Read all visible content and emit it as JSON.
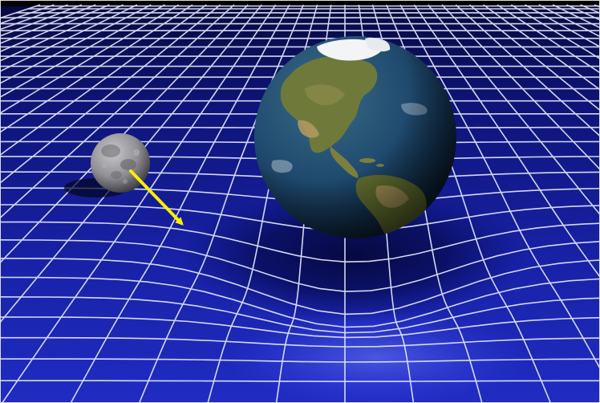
{
  "scene": {
    "subjects": [
      "earth",
      "moon",
      "spacetime-grid",
      "yellow-arrow"
    ],
    "colors": {
      "space_top": "#050510",
      "grid_far": "#0a0d5a",
      "grid_mid": "#1a22b0",
      "grid_near": "#2a36d0",
      "grid_line": "#e8ecff",
      "ocean": "#1f4a6e",
      "land": "#6f7a3a",
      "desert": "#b79a62",
      "ice": "#f2f4f6",
      "moon": "#8f8f94",
      "arrow": "#ffee00"
    },
    "icons": {
      "earth": "earth-globe-icon",
      "moon": "moon-icon",
      "arrow": "arrow-down-right-icon"
    }
  }
}
